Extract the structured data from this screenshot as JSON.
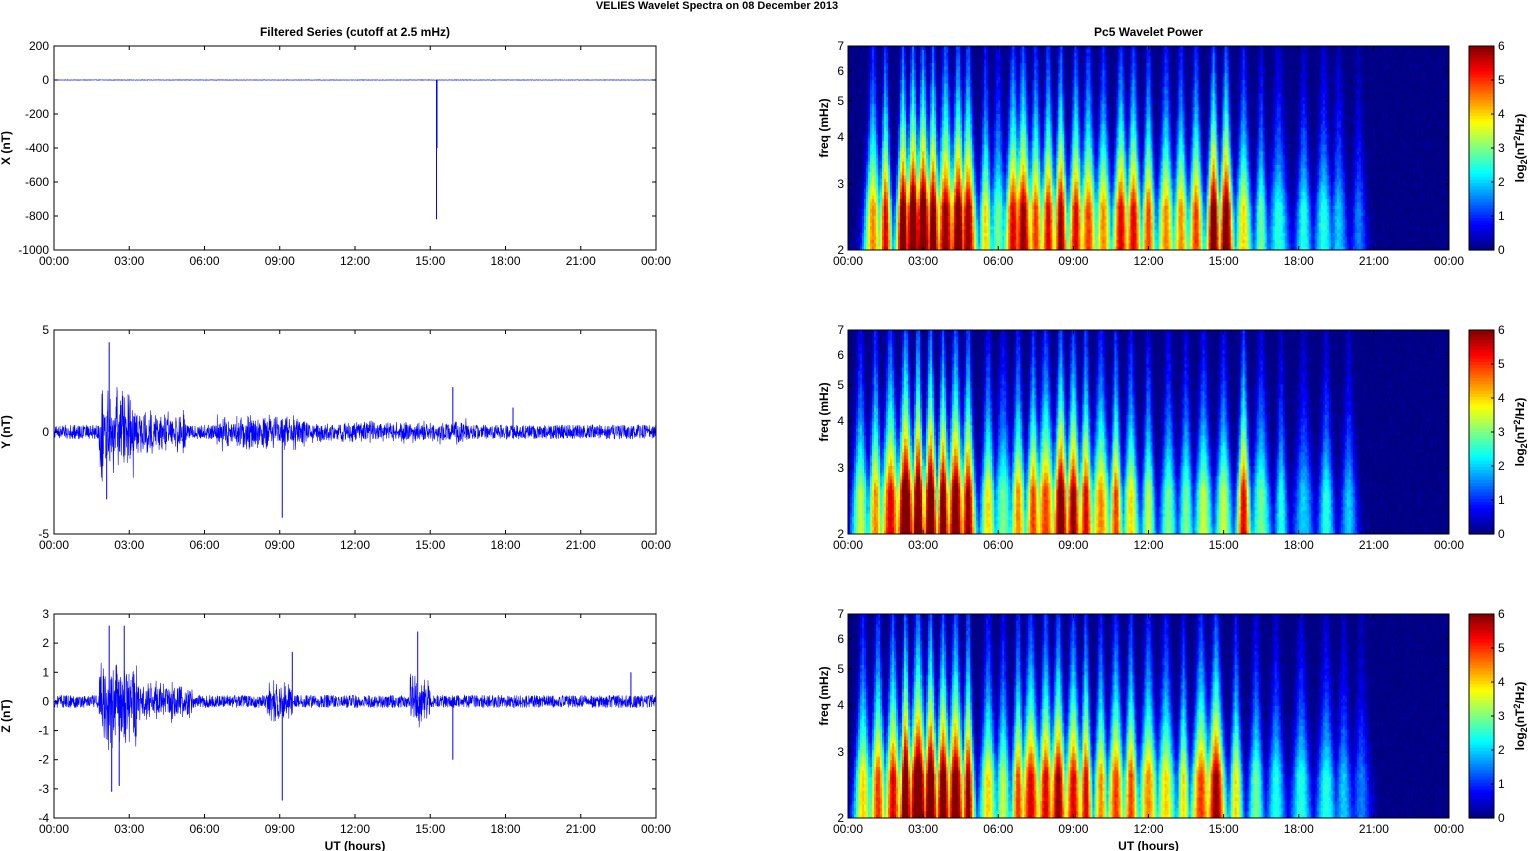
{
  "figure_title": "VELIES Wavelet Spectra on 08 December  2013",
  "chart_data": [
    {
      "type": "line",
      "title": "Filtered Series (cutoff at 2.5 mHz)",
      "ylabel": "X (nT)",
      "xlabel": "",
      "x_ticks": [
        "00:00",
        "03:00",
        "06:00",
        "09:00",
        "12:00",
        "15:00",
        "18:00",
        "21:00",
        "00:00"
      ],
      "ylim": [
        -1000,
        200
      ],
      "y_ticks": [
        200,
        0,
        -200,
        -400,
        -600,
        -800,
        -1000
      ],
      "line_color": "#0000ff",
      "baseline": 0,
      "noise_amplitude": 1.2,
      "events": [
        {
          "t": 15.25,
          "v": -820
        },
        {
          "t": 15.27,
          "v": -400
        }
      ]
    },
    {
      "type": "line",
      "title": "",
      "ylabel": "Y (nT)",
      "xlabel": "",
      "x_ticks": [
        "00:00",
        "03:00",
        "06:00",
        "09:00",
        "12:00",
        "15:00",
        "18:00",
        "21:00",
        "00:00"
      ],
      "ylim": [
        -5,
        5
      ],
      "y_ticks": [
        5,
        0,
        -5
      ],
      "line_color": "#0000ff",
      "baseline": 0,
      "noise_amplitude": 0.35,
      "activity": [
        {
          "t0": 1.8,
          "t1": 3.2,
          "amp": 2.6
        },
        {
          "t0": 3.2,
          "t1": 5.3,
          "amp": 1.2
        },
        {
          "t0": 6.5,
          "t1": 10.0,
          "amp": 1.0
        },
        {
          "t0": 10.0,
          "t1": 15.0,
          "amp": 0.6
        },
        {
          "t0": 15.0,
          "t1": 16.5,
          "amp": 0.7
        }
      ],
      "events": [
        {
          "t": 2.2,
          "v": 4.4
        },
        {
          "t": 2.1,
          "v": -3.3
        },
        {
          "t": 9.1,
          "v": -4.2
        },
        {
          "t": 15.9,
          "v": 2.2
        },
        {
          "t": 18.3,
          "v": 1.2
        }
      ]
    },
    {
      "type": "line",
      "title": "",
      "ylabel": "Z (nT)",
      "xlabel": "UT (hours)",
      "x_ticks": [
        "00:00",
        "03:00",
        "06:00",
        "09:00",
        "12:00",
        "15:00",
        "18:00",
        "21:00",
        "00:00"
      ],
      "ylim": [
        -4,
        3
      ],
      "y_ticks": [
        3,
        2,
        1,
        0,
        -1,
        -2,
        -3,
        -4
      ],
      "line_color": "#0000ff",
      "baseline": 0,
      "noise_amplitude": 0.22,
      "activity": [
        {
          "t0": 1.8,
          "t1": 3.3,
          "amp": 1.8
        },
        {
          "t0": 3.3,
          "t1": 5.5,
          "amp": 0.8
        },
        {
          "t0": 8.5,
          "t1": 9.5,
          "amp": 0.9
        },
        {
          "t0": 14.2,
          "t1": 15.0,
          "amp": 1.0
        }
      ],
      "events": [
        {
          "t": 2.2,
          "v": 2.6
        },
        {
          "t": 2.8,
          "v": 2.6
        },
        {
          "t": 2.3,
          "v": -3.1
        },
        {
          "t": 2.6,
          "v": -2.9
        },
        {
          "t": 9.1,
          "v": -3.4
        },
        {
          "t": 9.5,
          "v": 1.7
        },
        {
          "t": 14.5,
          "v": 2.4
        },
        {
          "t": 15.9,
          "v": -2.0
        },
        {
          "t": 23.0,
          "v": 1.0
        }
      ]
    },
    {
      "type": "heatmap",
      "title": "Pc5 Wavelet Power",
      "ylabel": "freq (mHz)",
      "xlabel": "",
      "x_ticks": [
        "00:00",
        "03:00",
        "06:00",
        "09:00",
        "12:00",
        "15:00",
        "18:00",
        "21:00",
        "00:00"
      ],
      "y_ticks": [
        "7",
        "6",
        "5",
        "4",
        "3",
        "2"
      ],
      "y_tick_values": [
        7,
        6,
        5,
        4,
        3,
        2
      ],
      "ylim": [
        2,
        7
      ],
      "y_scale": "log",
      "colorbar": {
        "label_main": "log",
        "label_sub": "2",
        "label_rest": "(nT",
        "label_sup": "2",
        "label_end": "/Hz)",
        "ticks": [
          "6",
          "5",
          "4",
          "3",
          "2",
          "1",
          "0"
        ],
        "range": [
          0,
          6
        ]
      },
      "blobs": [
        {
          "t": 1.0,
          "p": 4.5
        },
        {
          "t": 1.5,
          "p": 5.5
        },
        {
          "t": 2.2,
          "p": 6.5
        },
        {
          "t": 2.6,
          "p": 7.0
        },
        {
          "t": 3.0,
          "p": 7.0
        },
        {
          "t": 3.4,
          "p": 6.5
        },
        {
          "t": 3.9,
          "p": 6.0
        },
        {
          "t": 4.4,
          "p": 6.5
        },
        {
          "t": 4.8,
          "p": 6.0
        },
        {
          "t": 5.5,
          "p": 4.0
        },
        {
          "t": 6.0,
          "p": 3.0
        },
        {
          "t": 6.6,
          "p": 5.5
        },
        {
          "t": 7.0,
          "p": 6.0
        },
        {
          "t": 7.5,
          "p": 5.0
        },
        {
          "t": 8.0,
          "p": 5.5
        },
        {
          "t": 8.5,
          "p": 6.0
        },
        {
          "t": 9.1,
          "p": 5.5
        },
        {
          "t": 9.6,
          "p": 5.0
        },
        {
          "t": 10.2,
          "p": 4.5
        },
        {
          "t": 10.9,
          "p": 5.5
        },
        {
          "t": 11.4,
          "p": 5.5
        },
        {
          "t": 12.0,
          "p": 5.0
        },
        {
          "t": 12.7,
          "p": 4.5
        },
        {
          "t": 13.3,
          "p": 4.5
        },
        {
          "t": 13.9,
          "p": 5.0
        },
        {
          "t": 14.6,
          "p": 6.5
        },
        {
          "t": 15.1,
          "p": 6.5
        },
        {
          "t": 15.8,
          "p": 4.0
        },
        {
          "t": 16.5,
          "p": 3.0
        },
        {
          "t": 17.2,
          "p": 2.5
        },
        {
          "t": 18.2,
          "p": 2.5
        },
        {
          "t": 19.0,
          "p": 2.5
        },
        {
          "t": 19.6,
          "p": 2.0
        },
        {
          "t": 20.4,
          "p": 1.5
        }
      ]
    },
    {
      "type": "heatmap",
      "title": "",
      "ylabel": "freq (mHz)",
      "xlabel": "",
      "x_ticks": [
        "00:00",
        "03:00",
        "06:00",
        "09:00",
        "12:00",
        "15:00",
        "18:00",
        "21:00",
        "00:00"
      ],
      "y_ticks": [
        "7",
        "6",
        "5",
        "4",
        "3",
        "2"
      ],
      "y_tick_values": [
        7,
        6,
        5,
        4,
        3,
        2
      ],
      "ylim": [
        2,
        7
      ],
      "y_scale": "log",
      "colorbar": {
        "label_main": "log",
        "label_sub": "2",
        "label_rest": "(nT",
        "label_sup": "2",
        "label_end": "/Hz)",
        "ticks": [
          "6",
          "5",
          "4",
          "3",
          "2",
          "1",
          "0"
        ],
        "range": [
          0,
          6
        ]
      },
      "blobs": [
        {
          "t": 0.5,
          "p": 3.5
        },
        {
          "t": 1.1,
          "p": 4.5
        },
        {
          "t": 1.7,
          "p": 5.5
        },
        {
          "t": 2.3,
          "p": 7.0
        },
        {
          "t": 2.8,
          "p": 7.0
        },
        {
          "t": 3.3,
          "p": 7.0
        },
        {
          "t": 3.8,
          "p": 6.5
        },
        {
          "t": 4.3,
          "p": 6.5
        },
        {
          "t": 4.8,
          "p": 6.0
        },
        {
          "t": 5.6,
          "p": 4.0
        },
        {
          "t": 6.2,
          "p": 3.0
        },
        {
          "t": 6.8,
          "p": 4.5
        },
        {
          "t": 7.4,
          "p": 5.0
        },
        {
          "t": 7.9,
          "p": 5.0
        },
        {
          "t": 8.5,
          "p": 6.5
        },
        {
          "t": 9.0,
          "p": 6.0
        },
        {
          "t": 9.5,
          "p": 5.5
        },
        {
          "t": 10.1,
          "p": 4.5
        },
        {
          "t": 10.7,
          "p": 5.0
        },
        {
          "t": 11.3,
          "p": 4.0
        },
        {
          "t": 12.0,
          "p": 3.5
        },
        {
          "t": 12.8,
          "p": 3.0
        },
        {
          "t": 13.5,
          "p": 3.0
        },
        {
          "t": 14.2,
          "p": 3.5
        },
        {
          "t": 15.0,
          "p": 3.5
        },
        {
          "t": 15.8,
          "p": 5.5
        },
        {
          "t": 16.5,
          "p": 3.0
        },
        {
          "t": 17.3,
          "p": 2.5
        },
        {
          "t": 18.2,
          "p": 2.0
        },
        {
          "t": 19.1,
          "p": 2.5
        },
        {
          "t": 20.0,
          "p": 2.0
        }
      ]
    },
    {
      "type": "heatmap",
      "title": "",
      "ylabel": "freq (mHz)",
      "xlabel": "UT (hours)",
      "x_ticks": [
        "00:00",
        "03:00",
        "06:00",
        "09:00",
        "12:00",
        "15:00",
        "18:00",
        "21:00",
        "00:00"
      ],
      "y_ticks": [
        "7",
        "6",
        "5",
        "4",
        "3",
        "2"
      ],
      "y_tick_values": [
        7,
        6,
        5,
        4,
        3,
        2
      ],
      "ylim": [
        2,
        7
      ],
      "y_scale": "log",
      "colorbar": {
        "label_main": "log",
        "label_sub": "2",
        "label_rest": "(nT",
        "label_sup": "2",
        "label_end": "/Hz)",
        "ticks": [
          "6",
          "5",
          "4",
          "3",
          "2",
          "1",
          "0"
        ],
        "range": [
          0,
          6
        ]
      },
      "blobs": [
        {
          "t": 0.6,
          "p": 4.0
        },
        {
          "t": 1.2,
          "p": 5.0
        },
        {
          "t": 1.8,
          "p": 5.5
        },
        {
          "t": 2.3,
          "p": 7.0
        },
        {
          "t": 2.8,
          "p": 7.0
        },
        {
          "t": 3.3,
          "p": 7.0
        },
        {
          "t": 3.8,
          "p": 6.5
        },
        {
          "t": 4.3,
          "p": 6.5
        },
        {
          "t": 4.8,
          "p": 6.0
        },
        {
          "t": 5.6,
          "p": 4.0
        },
        {
          "t": 6.2,
          "p": 3.5
        },
        {
          "t": 6.8,
          "p": 5.0
        },
        {
          "t": 7.3,
          "p": 5.5
        },
        {
          "t": 7.9,
          "p": 5.5
        },
        {
          "t": 8.4,
          "p": 6.0
        },
        {
          "t": 9.0,
          "p": 5.5
        },
        {
          "t": 9.5,
          "p": 5.5
        },
        {
          "t": 10.1,
          "p": 4.5
        },
        {
          "t": 10.7,
          "p": 5.0
        },
        {
          "t": 11.3,
          "p": 5.0
        },
        {
          "t": 12.0,
          "p": 4.5
        },
        {
          "t": 12.7,
          "p": 4.0
        },
        {
          "t": 13.4,
          "p": 4.0
        },
        {
          "t": 14.1,
          "p": 5.0
        },
        {
          "t": 14.7,
          "p": 6.0
        },
        {
          "t": 15.5,
          "p": 4.0
        },
        {
          "t": 16.3,
          "p": 3.0
        },
        {
          "t": 17.1,
          "p": 2.5
        },
        {
          "t": 18.1,
          "p": 2.5
        },
        {
          "t": 19.1,
          "p": 2.5
        },
        {
          "t": 19.8,
          "p": 2.0
        },
        {
          "t": 20.5,
          "p": 1.5
        }
      ]
    }
  ]
}
